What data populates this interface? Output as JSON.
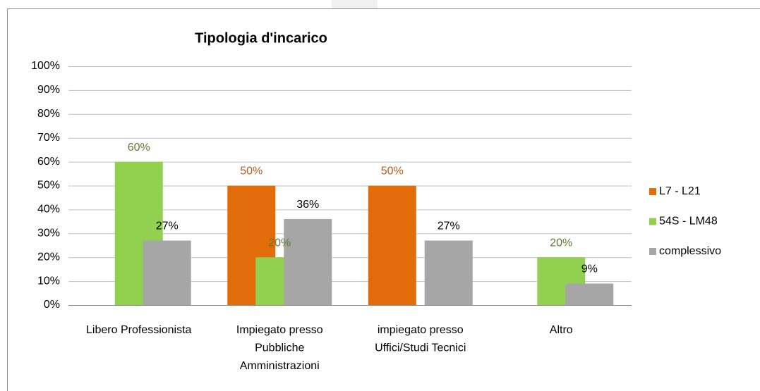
{
  "chart_data": {
    "type": "bar",
    "title": "Tipologia d'incarico",
    "categories": [
      "Libero Professionista",
      "Impiegato presso\nPubbliche\nAmministrazioni",
      "impiegato presso\nUffici/Studi Tecnici",
      "Altro"
    ],
    "series": [
      {
        "name": "L7 - L21",
        "color": "#e36c0a",
        "label_color": "#b85c1b",
        "values": [
          null,
          50,
          50,
          null
        ],
        "value_labels": [
          null,
          "50%",
          "50%",
          null
        ]
      },
      {
        "name": "54S - LM48",
        "color": "#92d050",
        "label_color": "#5f7a32",
        "values": [
          60,
          20,
          null,
          20
        ],
        "value_labels": [
          "60%",
          "20%",
          null,
          "20%"
        ]
      },
      {
        "name": "complessivo",
        "color": "#a6a6a6",
        "label_color": "#000000",
        "values": [
          27,
          36,
          27,
          9
        ],
        "value_labels": [
          "27%",
          "36%",
          "27%",
          "9%"
        ]
      }
    ],
    "ylim": [
      0,
      100
    ],
    "yticks": [
      {
        "value": 0,
        "label": "0%"
      },
      {
        "value": 10,
        "label": "10%"
      },
      {
        "value": 20,
        "label": "20%"
      },
      {
        "value": 30,
        "label": "30%"
      },
      {
        "value": 40,
        "label": "40%"
      },
      {
        "value": 50,
        "label": "50%"
      },
      {
        "value": 60,
        "label": "60%"
      },
      {
        "value": 70,
        "label": "70%"
      },
      {
        "value": 80,
        "label": "80%"
      },
      {
        "value": 90,
        "label": "90%"
      },
      {
        "value": 100,
        "label": "100%"
      }
    ],
    "grid": true,
    "legend": "right"
  }
}
